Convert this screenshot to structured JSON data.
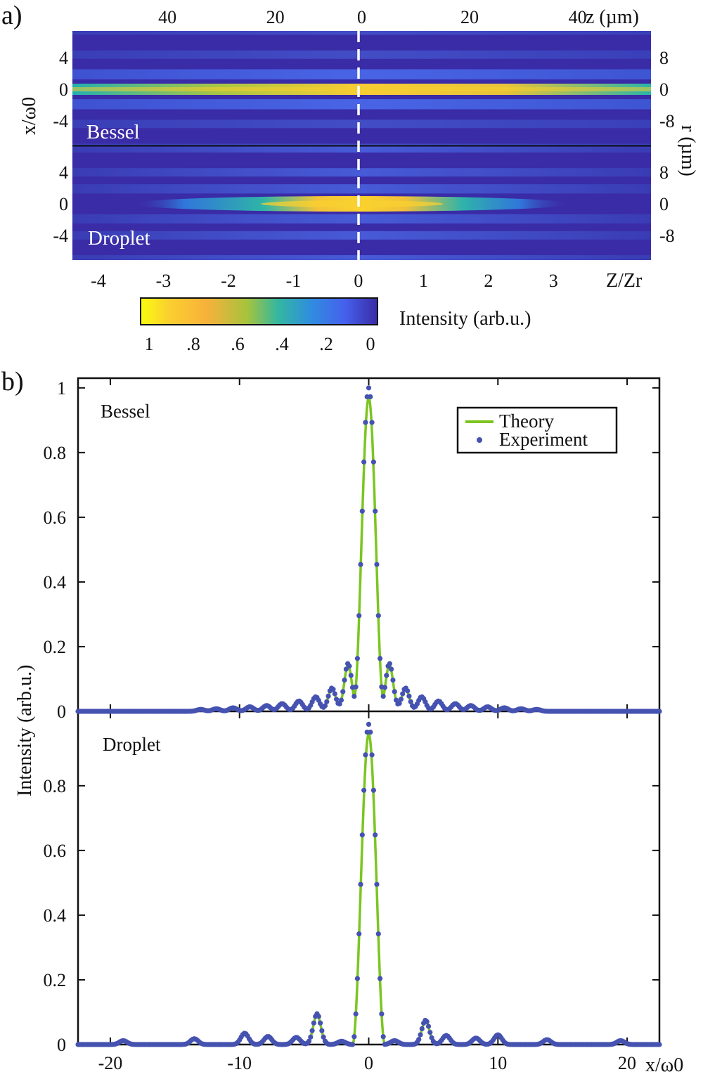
{
  "figure": {
    "panel_a_label": "a)",
    "panel_b_label": "b)"
  },
  "chart_data": [
    {
      "type": "heatmap",
      "panel": "a",
      "colormap": "parula",
      "sub_panels": [
        {
          "name": "Bessel",
          "description_of_structure": "long uniform central lobe along z with parallel side lobes"
        },
        {
          "name": "Droplet",
          "description_of_structure": "central lobe localized around Z/Zr ≈ 0 (about -2 to 2), weaker side lobes"
        }
      ],
      "x_bottom": {
        "label": "Z/Zr",
        "ticks": [
          -4,
          -3,
          -2,
          -1,
          0,
          1,
          2,
          3
        ],
        "range": [
          -4.4,
          4.5
        ]
      },
      "x_top": {
        "label": "z (µm)",
        "ticks": [
          "40",
          "20",
          "0",
          "20",
          "40"
        ],
        "tick_positions_data": [
          -45,
          -20,
          0,
          25,
          50
        ]
      },
      "y_left": {
        "label": "x/ω0",
        "ticks": [
          -4,
          0,
          4
        ],
        "range": [
          -7,
          7
        ]
      },
      "y_right": {
        "label": "r (µm)",
        "ticks": [
          -8,
          0,
          8
        ]
      },
      "center_line": {
        "z": 0,
        "style": "white dashed"
      },
      "colorbar": {
        "label": "Intensity (arb.u.)",
        "ticks": [
          "1",
          ".8",
          ".6",
          ".4",
          ".2",
          "0"
        ],
        "colors": [
          "#f9fb0e",
          "#fdba33",
          "#a6c33d",
          "#33b7a0",
          "#2f8ddf",
          "#4561ee",
          "#3a2ba6"
        ]
      }
    },
    {
      "type": "line",
      "panel": "b",
      "ylabel": "Intensity (arb.u.)",
      "xlabel": "x/ω0",
      "xlim": [
        -22.5,
        22.5
      ],
      "x_ticks": [
        -20,
        -10,
        0,
        10,
        20
      ],
      "legend": {
        "placement": "top-right",
        "entries": [
          "Theory",
          "Experiment"
        ]
      },
      "series_style": {
        "Theory": {
          "color": "#7cc521",
          "kind": "line"
        },
        "Experiment": {
          "color": "#4552b0",
          "kind": "dots"
        }
      },
      "subplots": [
        {
          "name": "Bessel",
          "ylim": [
            0,
            1.03
          ],
          "y_ticks": [
            "0",
            "0.2",
            "0.4",
            "0.6",
            "0.8",
            "1"
          ],
          "y_tick_values": [
            0,
            0.2,
            0.4,
            0.6,
            0.8,
            1
          ],
          "profile": {
            "peak": 1.0,
            "central_half_width": 1.18,
            "side_lobes": [
              {
                "x": 1.6,
                "y": 0.148
              },
              {
                "x": 2.85,
                "y": 0.072
              },
              {
                "x": 4.1,
                "y": 0.045
              },
              {
                "x": 5.4,
                "y": 0.032
              },
              {
                "x": 6.7,
                "y": 0.024
              },
              {
                "x": 7.9,
                "y": 0.018
              },
              {
                "x": 9.2,
                "y": 0.014
              },
              {
                "x": 10.5,
                "y": 0.011
              },
              {
                "x": 11.8,
                "y": 0.008
              },
              {
                "x": 13.0,
                "y": 0.006
              }
            ]
          }
        },
        {
          "name": "Droplet",
          "ylim": [
            0,
            1.03
          ],
          "y_ticks": [
            "0",
            "0.2",
            "0.4",
            "0.6",
            "0.8"
          ],
          "y_tick_values": [
            0,
            0.2,
            0.4,
            0.6,
            0.8
          ],
          "profile": {
            "peak": 0.99,
            "central_half_width": 1.25,
            "side_lobes": [
              {
                "x": -4.0,
                "y": 0.095
              },
              {
                "x": 4.4,
                "y": 0.075
              },
              {
                "x": -9.6,
                "y": 0.035
              },
              {
                "x": 10.0,
                "y": 0.03
              },
              {
                "x": -7.8,
                "y": 0.025
              },
              {
                "x": -5.6,
                "y": 0.022
              },
              {
                "x": 6.0,
                "y": 0.028
              },
              {
                "x": 8.3,
                "y": 0.02
              },
              {
                "x": -13.5,
                "y": 0.018
              },
              {
                "x": 13.8,
                "y": 0.015
              },
              {
                "x": -19.0,
                "y": 0.012
              },
              {
                "x": 19.5,
                "y": 0.012
              },
              {
                "x": 2.0,
                "y": 0.012
              },
              {
                "x": -2.1,
                "y": 0.01
              }
            ]
          }
        }
      ]
    }
  ]
}
